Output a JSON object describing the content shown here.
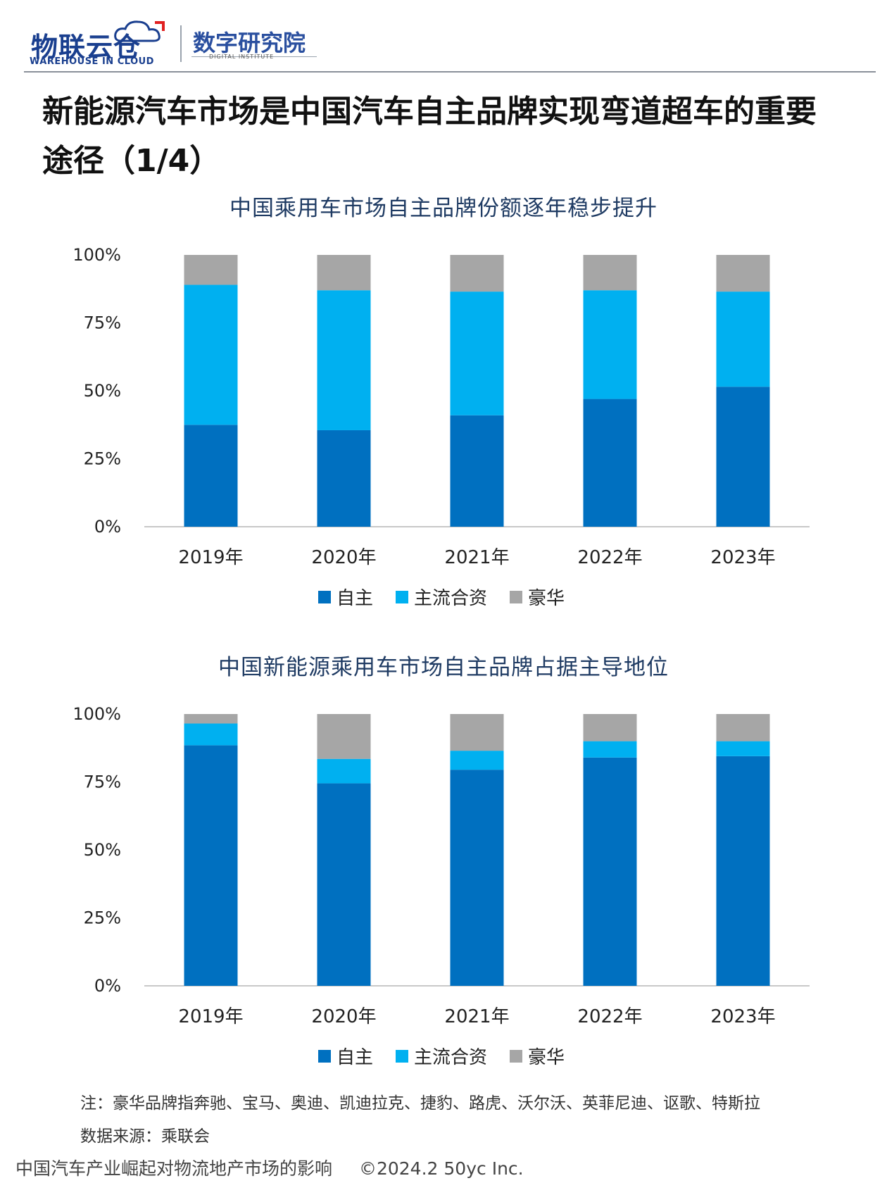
{
  "header": {
    "logo_main": "物联云仓",
    "logo_sub": "WAREHOUSE IN CLOUD",
    "logo_institute": "数字研究院",
    "logo_institute_sub": "DIGITAL INSTITUTE"
  },
  "page_title": "新能源汽车市场是中国汽车自主品牌实现弯道超车的重要途径（1/4）",
  "colors": {
    "自主": "#0070c0",
    "主流合资": "#00b0f0",
    "豪华": "#a6a6a6"
  },
  "chart_data": [
    {
      "type": "bar",
      "stacked": true,
      "title": "中国乘用车市场自主品牌份额逐年稳步提升",
      "categories": [
        "2019年",
        "2020年",
        "2021年",
        "2022年",
        "2023年"
      ],
      "series": [
        {
          "name": "自主",
          "values": [
            37.5,
            35.5,
            41.0,
            47.0,
            51.5
          ]
        },
        {
          "name": "主流合资",
          "values": [
            51.5,
            51.5,
            45.5,
            40.0,
            35.0
          ]
        },
        {
          "name": "豪华",
          "values": [
            11.0,
            13.0,
            13.5,
            13.0,
            13.5
          ]
        }
      ],
      "ylim": [
        0,
        100
      ],
      "yticks": [
        "0%",
        "25%",
        "50%",
        "75%",
        "100%"
      ],
      "legend_position": "bottom",
      "grid": false
    },
    {
      "type": "bar",
      "stacked": true,
      "title": "中国新能源乘用车市场自主品牌占据主导地位",
      "categories": [
        "2019年",
        "2020年",
        "2021年",
        "2022年",
        "2023年"
      ],
      "series": [
        {
          "name": "自主",
          "values": [
            88.5,
            74.5,
            79.5,
            84.0,
            84.5
          ]
        },
        {
          "name": "主流合资",
          "values": [
            8.0,
            9.0,
            7.0,
            6.0,
            5.5
          ]
        },
        {
          "name": "豪华",
          "values": [
            3.5,
            16.5,
            13.5,
            10.0,
            10.0
          ]
        }
      ],
      "ylim": [
        0,
        100
      ],
      "yticks": [
        "0%",
        "25%",
        "50%",
        "75%",
        "100%"
      ],
      "legend_position": "bottom",
      "grid": false
    }
  ],
  "notes": {
    "note": "注：豪华品牌指奔驰、宝马、奥迪、凯迪拉克、捷豹、路虎、沃尔沃、英菲尼迪、讴歌、特斯拉",
    "source": "数据来源：乘联会"
  },
  "footer": {
    "doc_title": "中国汽车产业崛起对物流地产市场的影响",
    "copyright": "©2024.2 50yc Inc."
  }
}
